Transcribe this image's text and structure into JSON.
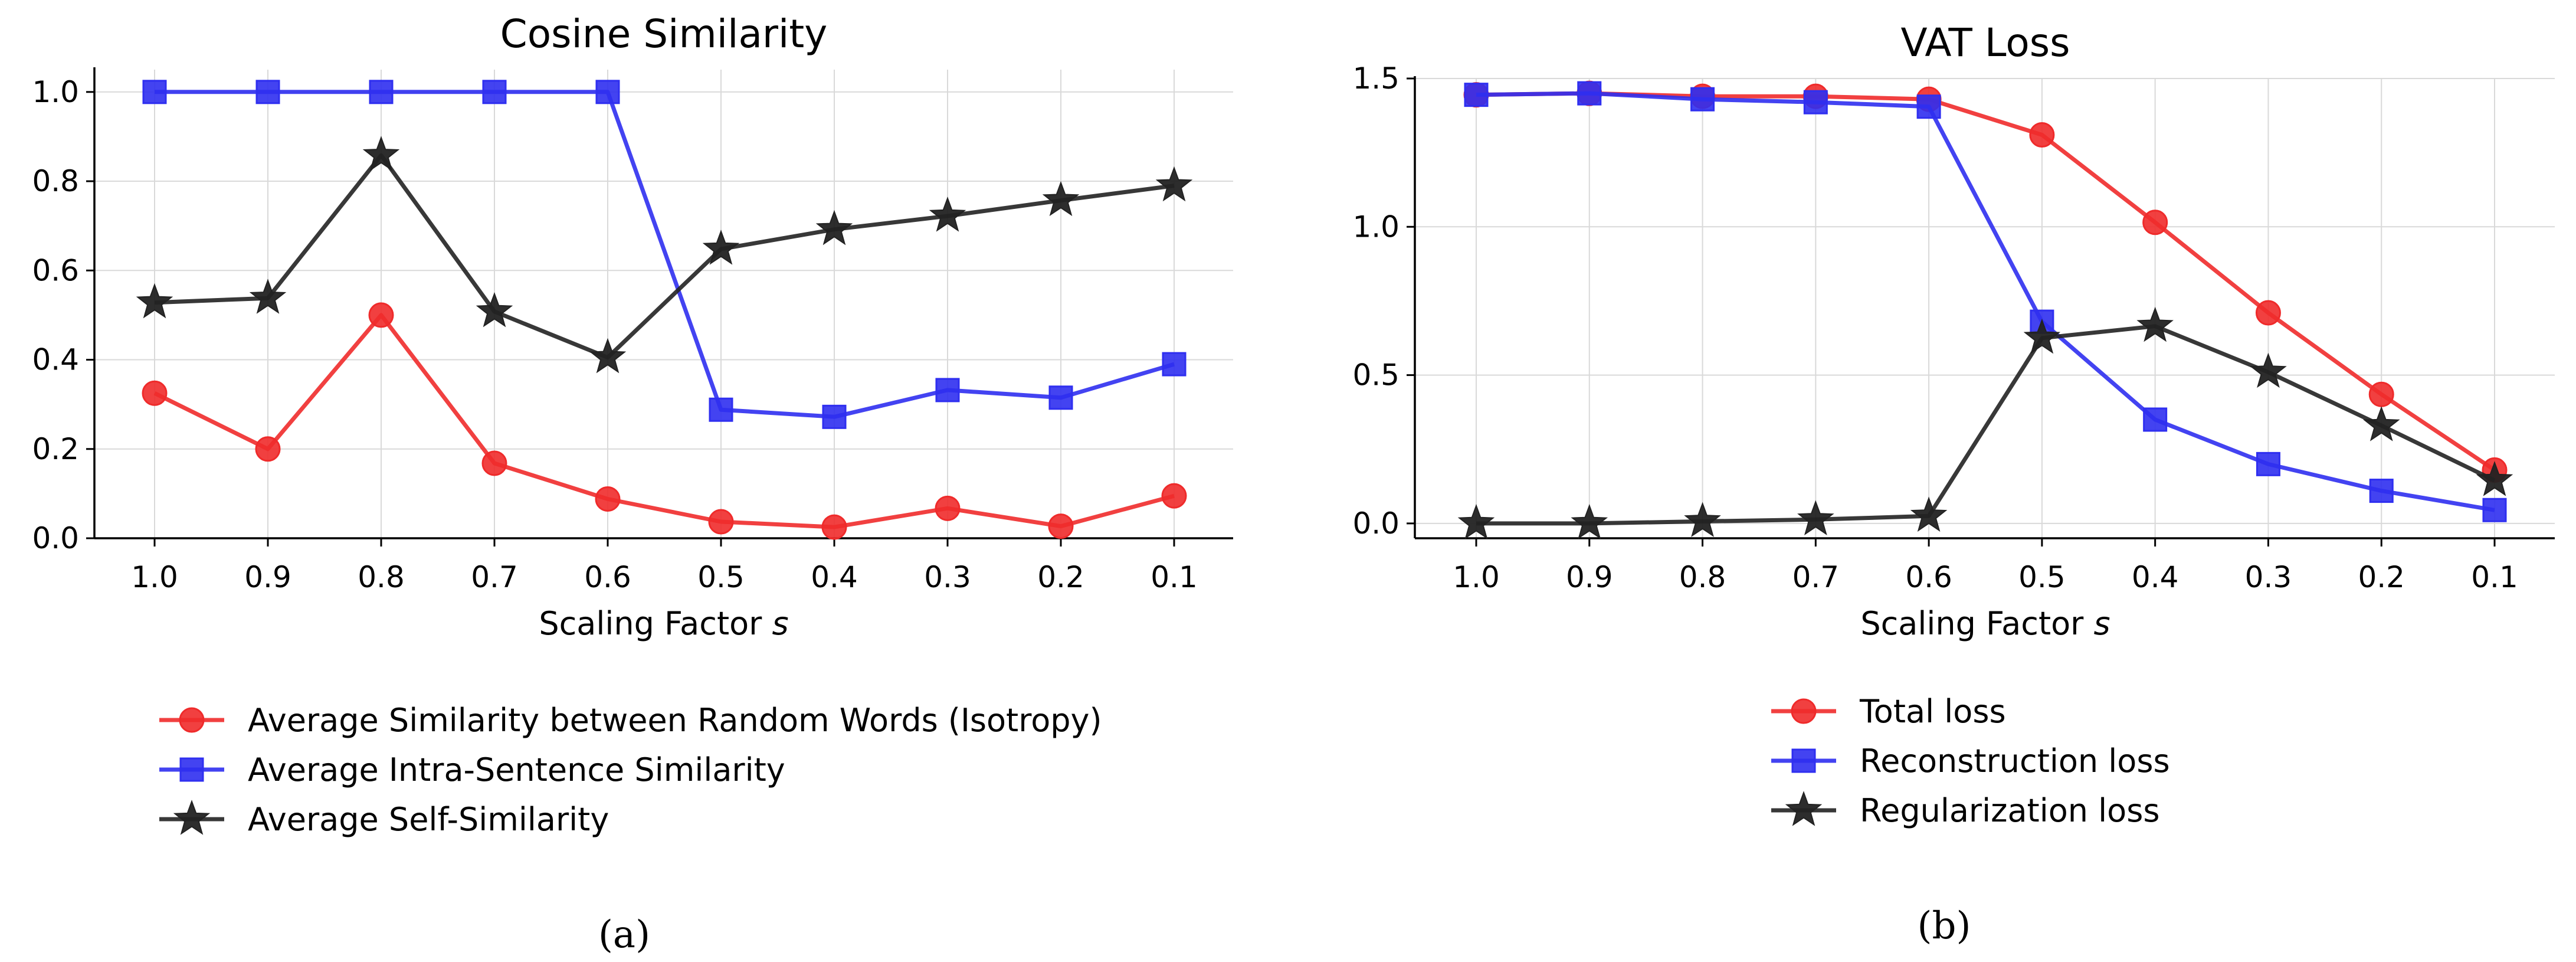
{
  "captions": [
    "(a)",
    "(b)"
  ],
  "chart_data": [
    {
      "type": "line",
      "title": "Cosine Similarity",
      "xlabel": "Scaling Factor",
      "xlabel_var": "s",
      "ylabel": "",
      "categories": [
        "1.0",
        "0.9",
        "0.8",
        "0.7",
        "0.6",
        "0.5",
        "0.4",
        "0.3",
        "0.2",
        "0.1"
      ],
      "ylim": [
        0,
        1.05
      ],
      "yticks": [
        0.0,
        0.2,
        0.4,
        0.6,
        0.8,
        1.0
      ],
      "ytick_labels": [
        "0.0",
        "0.2",
        "0.4",
        "0.6",
        "0.8",
        "1.0"
      ],
      "grid": true,
      "legend_position": "below",
      "series": [
        {
          "name": "Average Similarity between Random Words (Isotropy)",
          "color": "#ef2b2b",
          "marker": "circle",
          "values": [
            0.325,
            0.2,
            0.5,
            0.168,
            0.088,
            0.037,
            0.025,
            0.067,
            0.027,
            0.095
          ]
        },
        {
          "name": "Average Intra-Sentence Similarity",
          "color": "#2f2ff0",
          "marker": "square",
          "values": [
            1.0,
            1.0,
            1.0,
            1.0,
            1.0,
            0.288,
            0.272,
            0.332,
            0.315,
            0.39
          ]
        },
        {
          "name": "Average Self-Similarity",
          "color": "#222222",
          "marker": "star",
          "values": [
            0.528,
            0.538,
            0.858,
            0.508,
            0.405,
            0.648,
            0.692,
            0.722,
            0.757,
            0.79
          ]
        }
      ]
    },
    {
      "type": "line",
      "title": "VAT Loss",
      "xlabel": "Scaling Factor",
      "xlabel_var": "s",
      "ylabel": "",
      "categories": [
        "1.0",
        "0.9",
        "0.8",
        "0.7",
        "0.6",
        "0.5",
        "0.4",
        "0.3",
        "0.2",
        "0.1"
      ],
      "ylim": [
        -0.05,
        1.5
      ],
      "yticks": [
        0.0,
        0.5,
        1.0,
        1.5
      ],
      "ytick_labels": [
        "0.0",
        "0.5",
        "1.0",
        "1.5"
      ],
      "grid": true,
      "legend_position": "below",
      "series": [
        {
          "name": "Total loss",
          "color": "#ef2b2b",
          "marker": "circle",
          "values": [
            1.445,
            1.45,
            1.44,
            1.44,
            1.43,
            1.31,
            1.015,
            0.71,
            0.435,
            0.18
          ]
        },
        {
          "name": "Reconstruction loss",
          "color": "#2f2ff0",
          "marker": "square",
          "values": [
            1.445,
            1.45,
            1.43,
            1.42,
            1.405,
            0.68,
            0.35,
            0.2,
            0.11,
            0.045
          ]
        },
        {
          "name": "Regularization loss",
          "color": "#222222",
          "marker": "star",
          "values": [
            0.0,
            0.0,
            0.007,
            0.013,
            0.025,
            0.625,
            0.665,
            0.51,
            0.33,
            0.145
          ]
        }
      ]
    }
  ]
}
